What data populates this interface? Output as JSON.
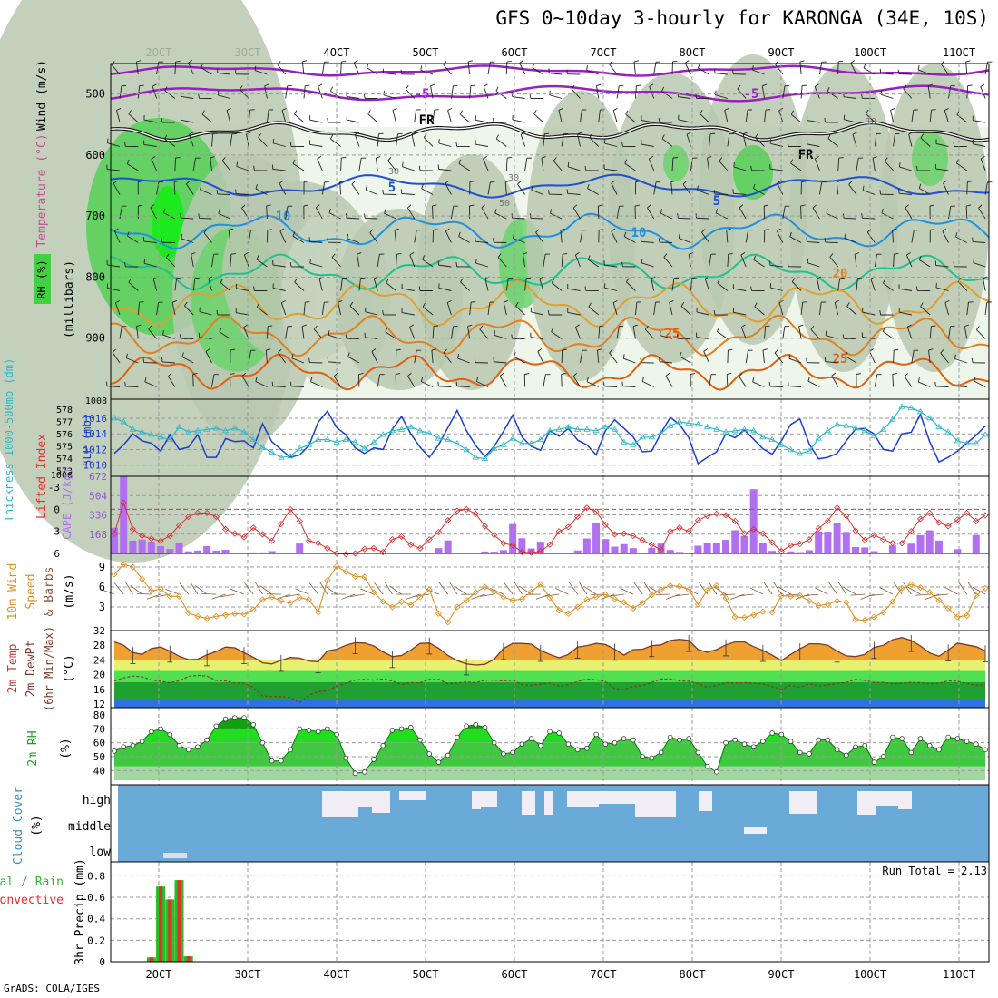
{
  "chart_data": {
    "type": "line",
    "title": "GFS 0~10day 3-hourly for KARONGA (34E, 10S)",
    "credit": "GrADS: COLA/IGES",
    "x_ticks": [
      "2OCT",
      "3OCT",
      "4OCT",
      "5OCT",
      "6OCT",
      "7OCT",
      "8OCT",
      "9OCT",
      "10OCT",
      "11OCT"
    ],
    "run_total_text": "Run Total = 2.13",
    "upper_air": {
      "ylabel_wind": "Wind (m/s)",
      "ylabel_temp": "Temperature (°C)",
      "ylabel_rh": "RH (%)",
      "ylabel_pressure": "(millibars)",
      "yticks": [
        500,
        600,
        700,
        800,
        900
      ],
      "ylim": [
        1000,
        450
      ],
      "isotherm_labels": [
        "-5",
        "-5",
        "FR",
        "FR",
        "5",
        "5",
        "10",
        "10",
        "20",
        "25",
        "25"
      ],
      "rh_labels": [
        "10",
        "30",
        "30",
        "50"
      ]
    },
    "pressure_panel": {
      "ylabel_thickness": "Thickness 1000-500mb (dm)",
      "ylabel_slp": "SLP (mb)",
      "thickness_ticks": [
        "578",
        "577",
        "576",
        "575",
        "574",
        "573"
      ],
      "slp_ticks": [
        "1016",
        "1014",
        "1012",
        "1010"
      ],
      "top_labels": [
        "1008",
        "1006"
      ],
      "series": [
        {
          "name": "SLP",
          "color": "#1a3fcc",
          "values": [
            1011.5,
            1012.6,
            1014,
            1013.1,
            1012.8,
            1011.8,
            1013.9,
            1012,
            1012.3,
            1013.9,
            1011,
            1011,
            1013.4,
            1013,
            1013.1,
            1012.2,
            1015.3,
            1013,
            1012,
            1011,
            1011.3,
            1012.5,
            1015.5,
            1016.9,
            1014.8,
            1013.9,
            1012.2,
            1011.5,
            1012.2,
            1012,
            1014.6,
            1016.2,
            1014,
            1012.3,
            1011,
            1012.6,
            1014.8,
            1017,
            1014.4,
            1012.5,
            1011.1,
            1012.4,
            1014.3,
            1016.4,
            1013.6,
            1012.4,
            1011.9,
            1014.4,
            1013.7,
            1014.7,
            1013.2,
            1012.6,
            1011.3,
            1014.4,
            1015.8,
            1014.7,
            1013.6,
            1011.7,
            1011.8,
            1014.1,
            1016.1,
            1015.2,
            1013.5,
            1010.2,
            1011,
            1011.7,
            1014,
            1013.5,
            1014.5,
            1013.3,
            1012.1,
            1011.4,
            1013.1,
            1015.2,
            1015.9,
            1012.7,
            1010.8,
            1011,
            1011.5,
            1013.1,
            1014.6,
            1014.7,
            1014,
            1012,
            1011.8,
            1014,
            1014.2,
            1016.5,
            1013,
            1010.4,
            1011,
            1011.8,
            1012.8,
            1013.8,
            1015
          ]
        },
        {
          "name": "Thickness",
          "color": "#30b8c8",
          "values": [
            577.3,
            577,
            576.4,
            576.2,
            576,
            575.8,
            575.6,
            576.6,
            576.2,
            576.3,
            576.4,
            576.5,
            576.3,
            576.5,
            576.2,
            575.6,
            575,
            574.6,
            574.2,
            574.3,
            574.9,
            575.2,
            575.6,
            575.6,
            575.4,
            575.6,
            575.4,
            574.9,
            575.4,
            576,
            576.3,
            576.4,
            576.6,
            576.3,
            576.1,
            575.7,
            575.6,
            575.3,
            574.8,
            574.2,
            574.1,
            574.9,
            575.2,
            575.7,
            575.3,
            575.3,
            575.6,
            576.3,
            576.4,
            576.6,
            576.4,
            576.4,
            576.3,
            576.6,
            576.4,
            575.4,
            575.2,
            575.8,
            575.8,
            576.1,
            576.7,
            577,
            576.9,
            576.8,
            576.6,
            576.4,
            576.2,
            576.3,
            576.4,
            576.3,
            575.8,
            575.6,
            575.2,
            574.8,
            574.5,
            574.7,
            575.7,
            576.3,
            576.8,
            576.7,
            576.5,
            576.3,
            575.9,
            576.4,
            577.2,
            578.2,
            578.1,
            577.8,
            577.3,
            576.6,
            576.2,
            575.5,
            575.3,
            575.3,
            576
          ]
        }
      ]
    },
    "stability_panel": {
      "ylabel_li": "Lifted Index",
      "ylabel_cape": "CAPE (J/kg)",
      "li_ticks": [
        "-3",
        "0",
        "3",
        "6"
      ],
      "cape_ticks": [
        "672",
        "504",
        "336",
        "168"
      ],
      "cape_values": [
        223,
        672,
        111,
        120,
        102,
        64,
        38,
        89,
        18,
        25,
        64,
        25,
        32,
        7,
        4,
        9,
        9,
        20,
        2,
        0,
        86,
        7,
        0,
        0,
        0,
        1,
        0,
        0,
        0,
        0,
        0,
        0,
        0,
        3,
        4,
        46,
        113,
        0,
        0,
        0,
        17,
        15,
        29,
        256,
        132,
        43,
        102,
        0,
        2,
        0,
        26,
        130,
        262,
        125,
        59,
        81,
        46,
        0,
        48,
        86,
        30,
        13,
        8,
        67,
        91,
        91,
        118,
        202,
        152,
        560,
        93,
        22,
        4,
        18,
        11,
        28,
        192,
        189,
        262,
        187,
        56,
        52,
        20,
        6,
        69,
        0,
        85,
        158,
        201,
        112,
        8,
        37,
        0,
        160,
        0
      ],
      "li_values": [
        3.3,
        -0.9,
        2.7,
        3.6,
        4,
        4.3,
        3.6,
        2.2,
        1,
        0.5,
        0.5,
        1,
        2.7,
        3.3,
        3.8,
        2.5,
        3.4,
        4.3,
        2,
        0,
        1.6,
        4.3,
        4.6,
        5.3,
        6,
        6.1,
        6,
        5.4,
        5.3,
        5.8,
        4.1,
        3.7,
        4.8,
        5.3,
        4.1,
        3.1,
        1.5,
        0.2,
        0,
        0.6,
        2.3,
        3.5,
        4.6,
        4.9,
        5.8,
        5.9,
        5.7,
        4.8,
        3,
        2.4,
        1,
        -0.2,
        0.3,
        2.1,
        3.4,
        3.3,
        3.6,
        4.2,
        4.8,
        5.5,
        3,
        2.5,
        3,
        1.5,
        0.9,
        0.6,
        0.8,
        1.6,
        3.3,
        2.7,
        3.3,
        4.5,
        5.7,
        4.9,
        4.7,
        4.1,
        2.6,
        1.6,
        -0.2,
        0.9,
        2.9,
        4.2,
        3.5,
        4.1,
        4.6,
        4.6,
        3,
        1.3,
        0.5,
        1.8,
        2.3,
        1.4,
        0.5,
        1.6,
        0.8
      ]
    },
    "wind_panel": {
      "ylabel": "10m Wind Speed & Barbs (m/s)",
      "yticks": [
        "9",
        "6",
        "3"
      ],
      "speed_values": [
        7.9,
        9.4,
        9,
        7.2,
        5.4,
        5.7,
        4.6,
        4.6,
        2.1,
        1.6,
        1.3,
        1.6,
        1.8,
        2,
        1.9,
        2.6,
        4.1,
        4.5,
        3.9,
        3.6,
        4.4,
        4.1,
        2.2,
        7,
        9.1,
        8.3,
        7.6,
        7.5,
        5.2,
        3.8,
        3,
        3.8,
        3.3,
        4.5,
        5.6,
        2,
        0.7,
        3,
        4,
        5.2,
        6,
        5.3,
        4.5,
        4,
        4.2,
        5.3,
        6.4,
        4.4,
        2.5,
        2,
        3,
        4.1,
        4.5,
        4.9,
        4.2,
        3.7,
        2.8,
        3.6,
        4.8,
        5.6,
        6.2,
        6.1,
        5.6,
        3.4,
        5.5,
        6.2,
        4.3,
        1.5,
        1.4,
        1.8,
        2.3,
        2.2,
        4.7,
        4.6,
        4.7,
        3.9,
        3.2,
        3.4,
        3.9,
        3.7,
        1.1,
        1,
        1.5,
        2.2,
        3.8,
        5.8,
        6.4,
        5.9,
        5.2,
        4,
        2.8,
        1.5,
        1.7,
        4.7,
        5.8
      ]
    },
    "temp_panel": {
      "ylabel": "2m Temp 2m DewPt (6hr Min/Max) (°C)",
      "yticks": [
        "32",
        "28",
        "24",
        "20",
        "16",
        "12"
      ],
      "temp_values": [
        28.9,
        28,
        26,
        25.5,
        27.1,
        27.5,
        26.4,
        25,
        24.1,
        24.2,
        25.4,
        26.3,
        27.5,
        27.3,
        26,
        24.7,
        23.2,
        22.9,
        23.9,
        24.7,
        24.5,
        23.7,
        23.5,
        26.5,
        26.9,
        28,
        28.7,
        28.6,
        27.8,
        26.2,
        24.9,
        25.2,
        26.7,
        28.5,
        28.6,
        27.2,
        25.2,
        23.8,
        22.9,
        22.6,
        22.8,
        24.2,
        27.1,
        28.5,
        28.5,
        28.3,
        26.6,
        25.5,
        24.6,
        25.5,
        27.5,
        27.9,
        28.5,
        28.2,
        26.9,
        25.3,
        26.8,
        26.9,
        27.9,
        28.1,
        29.3,
        29.6,
        29.3,
        26.8,
        26.1,
        26.8,
        28.1,
        28.9,
        28.9,
        27.6,
        26.6,
        25.3,
        23.8,
        25.5,
        27,
        28.4,
        28.4,
        28,
        26.4,
        25.1,
        24.9,
        25.5,
        27.4,
        28,
        29.5,
        30.1,
        29.3,
        27.8,
        25.9,
        25,
        26.7,
        28.6,
        28.1,
        27.6,
        26.5
      ],
      "dew_values": [
        18.3,
        19.1,
        19.6,
        19.4,
        18.5,
        18.2,
        17.8,
        18.3,
        19.5,
        19.8,
        19.6,
        18.4,
        18.3,
        17.7,
        17.7,
        16.5,
        14.2,
        14,
        14,
        13.8,
        12.3,
        14.4,
        15.4,
        15.6,
        16.9,
        17.7,
        18.5,
        18.7,
        18.5,
        18.8,
        18.3,
        17.3,
        17.8,
        17.8,
        18.7,
        18.7,
        17.5,
        17.7,
        18,
        17.8,
        18.5,
        18.5,
        18.3,
        18.5,
        17.2,
        17.1,
        17.4,
        17.7,
        16.9,
        17.2,
        18.1,
        18.8,
        18.6,
        18.1,
        16.2,
        15.9,
        16.8,
        17,
        17.9,
        18.8,
        18.8,
        18.3,
        18.2,
        17.6,
        16.5,
        17.1,
        17.8,
        17.7,
        17.8,
        17.6,
        17.5,
        16.7,
        16.1,
        17.1,
        16.5,
        17.5,
        16.9,
        17.2,
        17.6,
        17.9,
        18.7,
        18.4,
        17.9,
        17.9,
        17.5,
        17.6,
        17.9,
        17.8,
        17.5,
        17.6,
        18.3,
        18.2,
        17.6,
        17.1,
        17.2
      ]
    },
    "rh_panel": {
      "ylabel": "2m RH (%)",
      "yticks": [
        "80",
        "70",
        "60",
        "50",
        "40"
      ],
      "values": [
        54,
        57,
        58,
        61,
        68,
        70,
        66,
        58,
        55,
        57,
        62,
        72,
        77,
        78,
        78,
        73,
        60,
        47,
        47,
        55,
        70,
        69,
        68,
        70,
        66,
        49,
        38,
        39,
        48,
        58,
        69,
        70,
        71,
        62,
        52,
        46,
        51,
        64,
        72,
        73,
        71,
        60,
        52,
        53,
        59,
        63,
        58,
        68,
        67,
        59,
        55,
        56,
        66,
        59,
        60,
        63,
        62,
        50,
        49,
        53,
        64,
        62,
        63,
        53,
        43,
        39,
        60,
        62,
        59,
        57,
        61,
        67,
        66,
        61,
        53,
        52,
        62,
        62,
        55,
        51,
        57,
        58,
        46,
        50,
        64,
        63,
        53,
        63,
        58,
        55,
        64,
        63,
        61,
        59,
        55
      ]
    },
    "cloud_panel": {
      "ylabel": "Cloud Cover (%)",
      "levels": [
        "high",
        "middle",
        "low"
      ]
    },
    "precip_panel": {
      "ylabel_legend": "Total / Rain Convective",
      "ylabel": "3hr Precip (mm)",
      "yticks": [
        "0.8",
        "0.6",
        "0.4",
        "0.2",
        "0"
      ],
      "total_values": [
        0,
        0,
        0,
        0,
        0.04,
        0.7,
        0.58,
        0.76,
        0.05
      ]
    }
  }
}
